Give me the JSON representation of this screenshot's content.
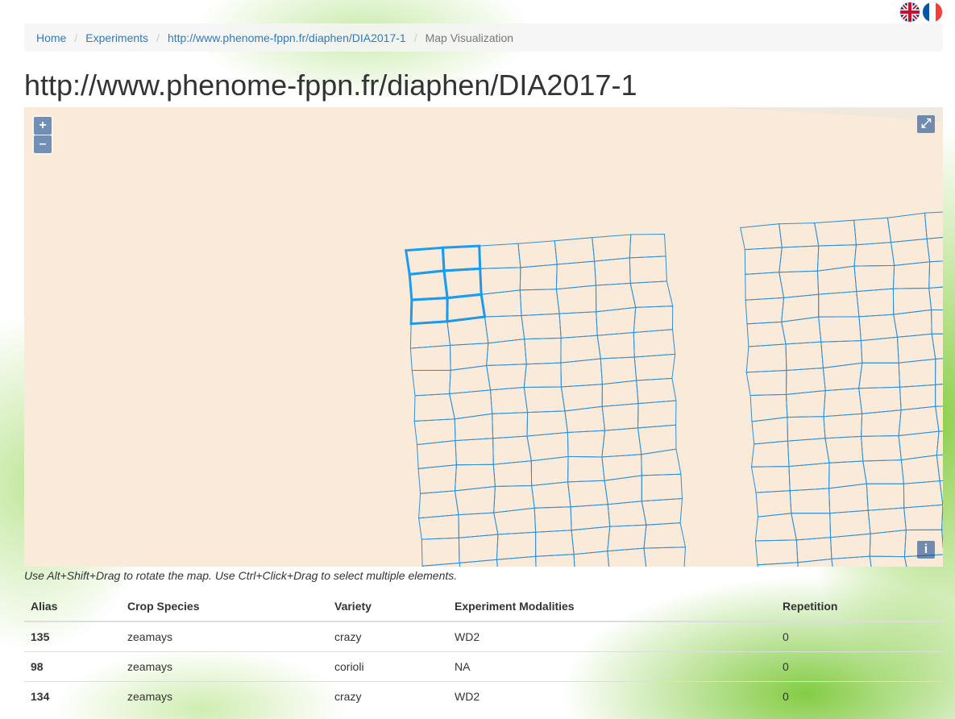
{
  "languages": [
    {
      "name": "English",
      "icon": "uk-flag-icon"
    },
    {
      "name": "French",
      "icon": "france-flag-icon"
    }
  ],
  "breadcrumb": {
    "home": "Home",
    "experiments": "Experiments",
    "experiment_uri": "http://www.phenome-fppn.fr/diaphen/DIA2017-1",
    "current": "Map Visualization",
    "separator": "/"
  },
  "page_title": "http://www.phenome-fppn.fr/diaphen/DIA2017-1",
  "map": {
    "zoom_in": "+",
    "zoom_out": "–",
    "fullscreen": "⤢",
    "attribution": "i",
    "colors": {
      "background": "#f9eada",
      "plot_stroke": "#2f8fd6",
      "selected_stroke": "#1a9cf0"
    }
  },
  "hint": "Use Alt+Shift+Drag to rotate the map. Use Ctrl+Click+Drag to select multiple elements.",
  "table": {
    "headers": [
      "Alias",
      "Crop Species",
      "Variety",
      "Experiment Modalities",
      "Repetition"
    ],
    "rows": [
      [
        "135",
        "zeamays",
        "crazy",
        "WD2",
        "0"
      ],
      [
        "98",
        "zeamays",
        "corioli",
        "NA",
        "0"
      ],
      [
        "134",
        "zeamays",
        "crazy",
        "WD2",
        "0"
      ]
    ]
  }
}
